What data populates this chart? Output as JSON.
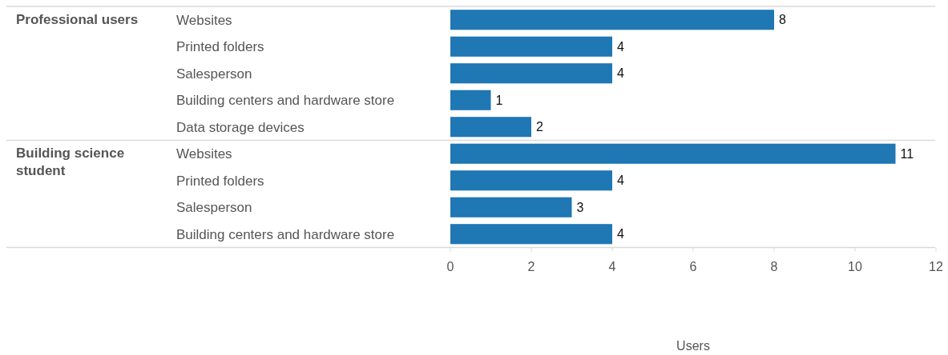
{
  "chart_data": [
    {
      "type": "bar",
      "orientation": "horizontal",
      "title": "Professional users",
      "categories": [
        "Websites",
        "Printed folders",
        "Salesperson",
        "Building centers and hardware store",
        "Data storage devices"
      ],
      "values": [
        8,
        4,
        4,
        1,
        2
      ],
      "color": "#1f77b4",
      "xlim": [
        0,
        12
      ],
      "tick_labels": "y",
      "data_labels": true
    },
    {
      "type": "bar",
      "orientation": "horizontal",
      "title": "Building science student",
      "categories": [
        "Websites",
        "Printed folders",
        "Salesperson",
        "Building centers and hardware store"
      ],
      "values": [
        11,
        4,
        3,
        4
      ],
      "color": "#1f77b4",
      "xlim": [
        0,
        12
      ],
      "xticks": [
        0,
        2,
        4,
        6,
        8,
        10,
        12
      ],
      "xlabel": "Users",
      "data_labels": true
    }
  ]
}
